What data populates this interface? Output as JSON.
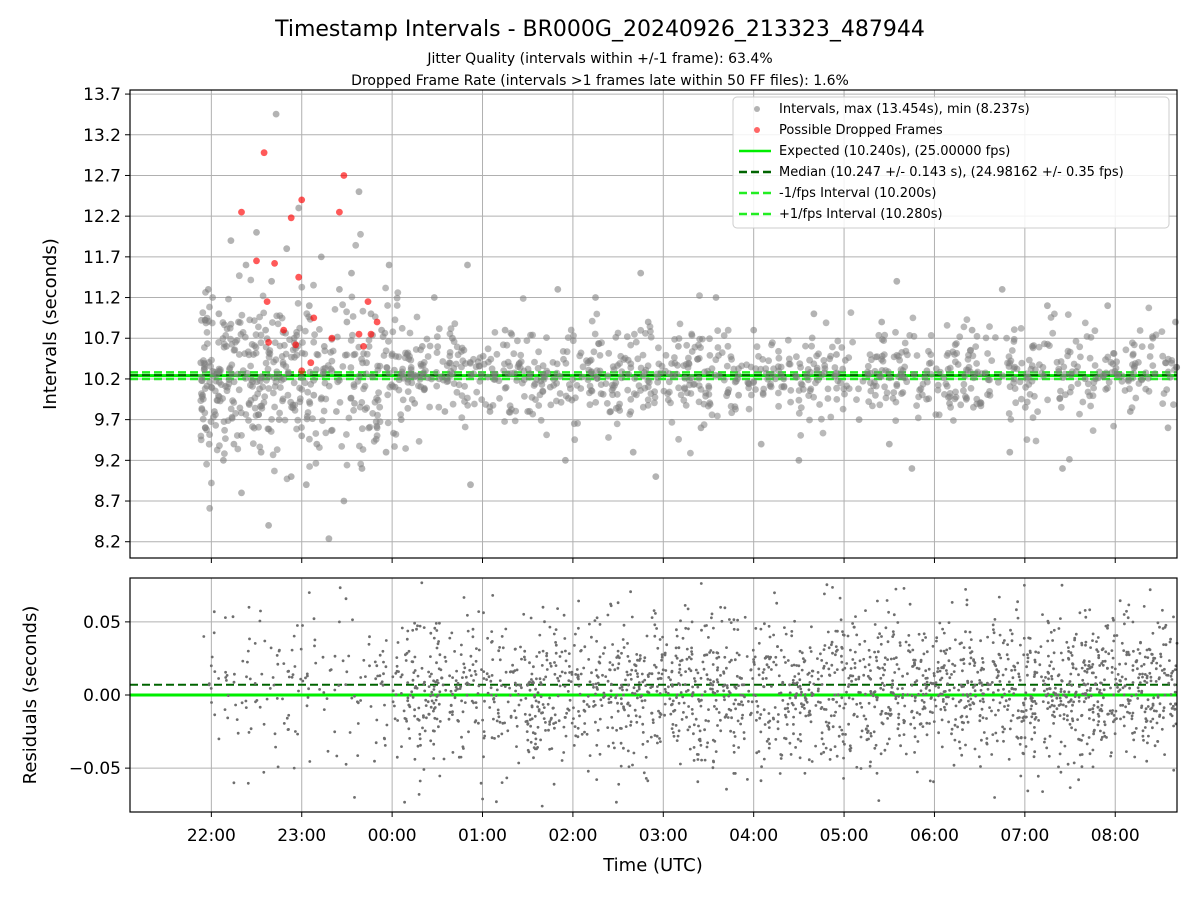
{
  "title": "Timestamp Intervals - BR000G_20240926_213323_487944",
  "subtitle_line1": "Jitter Quality (intervals within +/-1 frame): 63.4%",
  "subtitle_line2": "Dropped Frame Rate (intervals >1 frames late within 50 FF files): 1.6%",
  "colors": {
    "interval_points": "#808080",
    "dropped_points": "#ff0000",
    "expected_line": "#00ee00",
    "median_line": "#006400",
    "fps_interval_line": "#22ee22",
    "residual_points": "#6e6e6e",
    "grid": "#b0b0b0"
  },
  "chart_data": [
    {
      "type": "scatter",
      "title": "",
      "xlabel": "",
      "ylabel": "Intervals (seconds)",
      "xlim": [
        "21:06",
        "08:41"
      ],
      "ylim": [
        8.0,
        13.75
      ],
      "x_ticks": [
        "22:00",
        "23:00",
        "00:00",
        "01:00",
        "02:00",
        "03:00",
        "04:00",
        "05:00",
        "06:00",
        "07:00",
        "08:00"
      ],
      "y_ticks": [
        "8.2",
        "8.7",
        "9.2",
        "9.7",
        "10.2",
        "10.7",
        "11.2",
        "11.7",
        "12.2",
        "12.7",
        "13.2",
        "13.7"
      ],
      "grid": true,
      "legend_position": "top-right",
      "legend": [
        "Intervals, max (13.454s), min (8.237s)",
        "Possible Dropped Frames",
        "Expected (10.240s), (25.00000 fps)",
        "Median (10.247 +/- 0.143 s), (24.98162 +/- 0.35 fps)",
        "-1/fps Interval (10.200s)",
        "+1/fps Interval (10.280s)"
      ],
      "reference_lines": {
        "expected": 10.24,
        "median": 10.247,
        "minus_1fps": 10.2,
        "plus_1fps": 10.28
      },
      "series": [
        {
          "name": "Intervals, max (13.454s), min (8.237s)",
          "max": 13.454,
          "min": 8.237,
          "points": [
            [
              "21:53",
              10.4
            ],
            [
              "21:56",
              9.6
            ],
            [
              "21:58",
              11.3
            ],
            [
              "22:00",
              10.1
            ],
            [
              "22:02",
              9.8
            ],
            [
              "22:05",
              11.0
            ],
            [
              "22:08",
              9.2
            ],
            [
              "22:10",
              10.6
            ],
            [
              "22:13",
              11.9
            ],
            [
              "22:15",
              9.4
            ],
            [
              "22:18",
              10.9
            ],
            [
              "22:20",
              8.8
            ],
            [
              "22:23",
              11.6
            ],
            [
              "22:25",
              9.9
            ],
            [
              "22:28",
              10.5
            ],
            [
              "22:30",
              12.0
            ],
            [
              "22:33",
              9.3
            ],
            [
              "22:36",
              10.8
            ],
            [
              "22:38",
              8.4
            ],
            [
              "22:40",
              11.4
            ],
            [
              "22:43",
              13.454
            ],
            [
              "22:45",
              9.7
            ],
            [
              "22:48",
              10.2
            ],
            [
              "22:50",
              11.8
            ],
            [
              "22:53",
              9.0
            ],
            [
              "22:55",
              10.7
            ],
            [
              "22:58",
              12.3
            ],
            [
              "23:00",
              9.5
            ],
            [
              "23:03",
              8.9
            ],
            [
              "23:05",
              11.1
            ],
            [
              "23:08",
              10.0
            ],
            [
              "23:10",
              9.4
            ],
            [
              "23:13",
              11.7
            ],
            [
              "23:15",
              10.6
            ],
            [
              "23:18",
              8.237
            ],
            [
              "23:20",
              10.3
            ],
            [
              "23:23",
              9.8
            ],
            [
              "23:25",
              11.3
            ],
            [
              "23:28",
              8.7
            ],
            [
              "23:30",
              10.9
            ],
            [
              "23:33",
              11.5
            ],
            [
              "23:35",
              9.9
            ],
            [
              "23:38",
              12.5
            ],
            [
              "23:40",
              9.1
            ],
            [
              "23:43",
              10.4
            ],
            [
              "23:46",
              11.0
            ],
            [
              "23:50",
              9.6
            ],
            [
              "23:53",
              10.8
            ],
            [
              "23:56",
              9.3
            ],
            [
              "23:58",
              11.6
            ],
            [
              "00:02",
              10.1
            ],
            [
              "00:06",
              9.7
            ],
            [
              "00:10",
              10.5
            ],
            [
              "00:15",
              9.9
            ],
            [
              "00:20",
              10.6
            ],
            [
              "00:28",
              11.2
            ],
            [
              "00:35",
              9.8
            ],
            [
              "00:40",
              10.7
            ],
            [
              "00:50",
              11.6
            ],
            [
              "00:52",
              8.9
            ],
            [
              "01:05",
              9.8
            ],
            [
              "01:15",
              10.8
            ],
            [
              "01:30",
              9.8
            ],
            [
              "01:45",
              10.1
            ],
            [
              "01:50",
              11.3
            ],
            [
              "01:55",
              9.2
            ],
            [
              "02:10",
              10.4
            ],
            [
              "02:15",
              11.2
            ],
            [
              "02:25",
              9.8
            ],
            [
              "02:40",
              9.3
            ],
            [
              "02:45",
              11.5
            ],
            [
              "02:50",
              10.9
            ],
            [
              "02:55",
              9.0
            ],
            [
              "03:10",
              10.6
            ],
            [
              "03:25",
              9.6
            ],
            [
              "03:35",
              11.2
            ],
            [
              "03:50",
              10.0
            ],
            [
              "04:00",
              10.8
            ],
            [
              "04:05",
              9.4
            ],
            [
              "04:20",
              10.2
            ],
            [
              "04:30",
              9.2
            ],
            [
              "04:40",
              11.0
            ],
            [
              "04:55",
              10.5
            ],
            [
              "05:10",
              9.7
            ],
            [
              "05:25",
              10.9
            ],
            [
              "05:30",
              9.4
            ],
            [
              "05:35",
              11.4
            ],
            [
              "05:45",
              9.1
            ],
            [
              "05:55",
              10.3
            ],
            [
              "06:10",
              9.9
            ],
            [
              "06:25",
              10.8
            ],
            [
              "06:45",
              11.3
            ],
            [
              "06:50",
              9.3
            ],
            [
              "07:05",
              10.6
            ],
            [
              "07:15",
              11.1
            ],
            [
              "07:25",
              9.1
            ],
            [
              "07:40",
              10.2
            ],
            [
              "07:55",
              11.1
            ],
            [
              "08:10",
              9.8
            ],
            [
              "08:25",
              10.7
            ],
            [
              "08:35",
              9.6
            ],
            [
              "08:40",
              10.9
            ]
          ]
        },
        {
          "name": "Possible Dropped Frames",
          "points": [
            [
              "22:20",
              12.25
            ],
            [
              "22:30",
              11.65
            ],
            [
              "22:35",
              12.98
            ],
            [
              "22:37",
              11.15
            ],
            [
              "22:38",
              10.65
            ],
            [
              "22:42",
              11.62
            ],
            [
              "22:48",
              10.8
            ],
            [
              "22:53",
              12.18
            ],
            [
              "22:56",
              10.62
            ],
            [
              "22:58",
              11.45
            ],
            [
              "23:00",
              10.3
            ],
            [
              "23:00",
              12.4
            ],
            [
              "23:06",
              10.4
            ],
            [
              "23:08",
              10.95
            ],
            [
              "23:20",
              10.7
            ],
            [
              "23:25",
              12.25
            ],
            [
              "23:28",
              12.7
            ],
            [
              "23:38",
              10.75
            ],
            [
              "23:41",
              10.6
            ],
            [
              "23:44",
              11.15
            ],
            [
              "23:46",
              10.75
            ],
            [
              "23:50",
              10.9
            ]
          ]
        }
      ]
    },
    {
      "type": "scatter",
      "title": "",
      "xlabel": "Time (UTC)",
      "ylabel": "Residuals (seconds)",
      "xlim": [
        "21:06",
        "08:41"
      ],
      "ylim": [
        -0.08,
        0.08
      ],
      "x_ticks": [
        "22:00",
        "23:00",
        "00:00",
        "01:00",
        "02:00",
        "03:00",
        "04:00",
        "05:00",
        "06:00",
        "07:00",
        "08:00"
      ],
      "y_ticks": [
        "−0.05",
        "0.00",
        "0.05"
      ],
      "grid": true,
      "reference_lines": {
        "expected_residual": 0.0,
        "median_residual": 0.007
      },
      "series": [
        {
          "name": "Residuals",
          "summary": "dense band of residuals mostly within -0.05 to +0.05 s from 21:53 to 08:41, sparser before 00:00",
          "points": [
            [
              "21:55",
              0.04
            ],
            [
              "22:00",
              0.02
            ],
            [
              "22:05",
              -0.03
            ],
            [
              "22:10",
              0.01
            ],
            [
              "22:15",
              -0.06
            ],
            [
              "22:25",
              0.06
            ],
            [
              "22:35",
              -0.02
            ],
            [
              "22:45",
              0.03
            ],
            [
              "22:55",
              -0.05
            ],
            [
              "23:05",
              0.07
            ],
            [
              "23:15",
              -0.01
            ],
            [
              "23:25",
              0.05
            ],
            [
              "23:35",
              -0.07
            ],
            [
              "23:45",
              0.02
            ],
            [
              "23:55",
              -0.03
            ],
            [
              "00:30",
              0.01
            ],
            [
              "01:30",
              -0.02
            ],
            [
              "02:30",
              0.03
            ],
            [
              "03:30",
              -0.01
            ],
            [
              "04:30",
              0.02
            ],
            [
              "05:30",
              -0.03
            ],
            [
              "06:30",
              0.01
            ],
            [
              "07:30",
              -0.02
            ],
            [
              "08:30",
              0.02
            ]
          ]
        }
      ]
    }
  ]
}
